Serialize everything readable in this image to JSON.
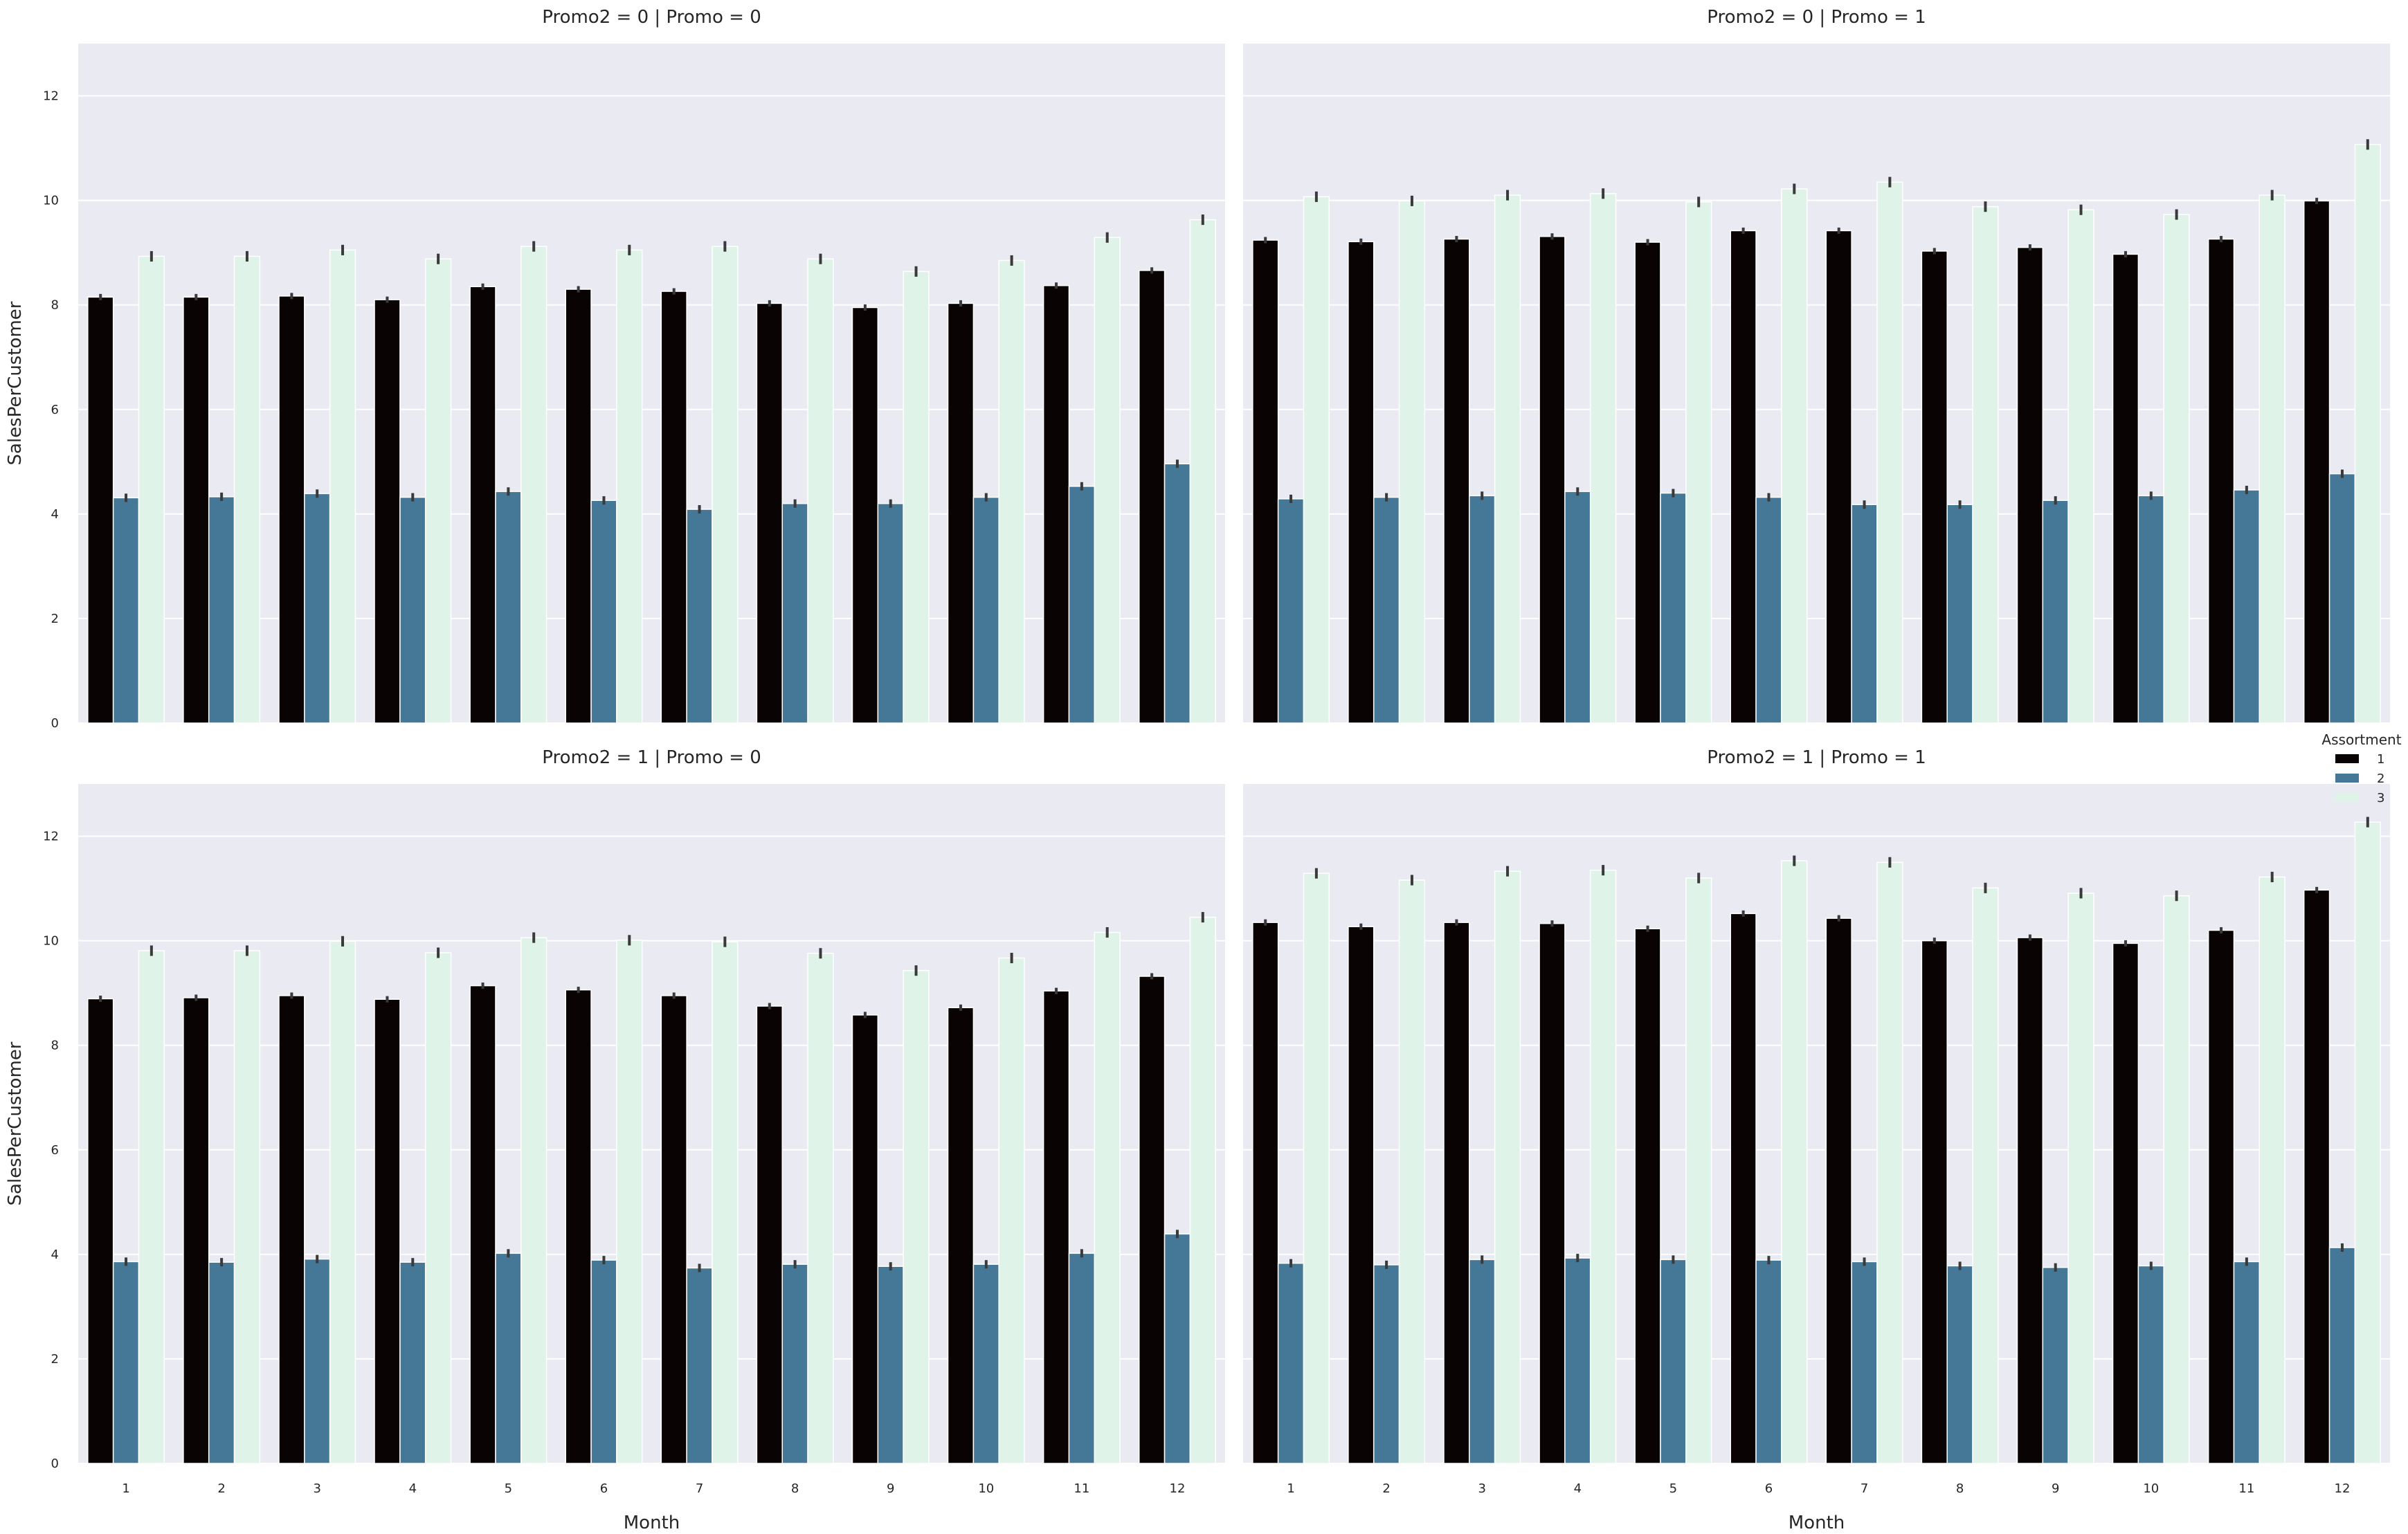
{
  "chart_data": [
    {
      "type": "bar",
      "title": "Promo2 = 0 | Promo = 0",
      "xlabel": "",
      "ylabel": "SalesPerCustomer",
      "ylim": [
        0,
        13
      ],
      "yticks": [
        0,
        2,
        4,
        6,
        8,
        10,
        12
      ],
      "categories": [
        "1",
        "2",
        "3",
        "4",
        "5",
        "6",
        "7",
        "8",
        "9",
        "10",
        "11",
        "12"
      ],
      "series": [
        {
          "name": "1",
          "values": [
            8.15,
            8.15,
            8.17,
            8.1,
            8.35,
            8.3,
            8.26,
            8.03,
            7.95,
            8.03,
            8.37,
            8.66
          ]
        },
        {
          "name": "2",
          "values": [
            4.31,
            4.33,
            4.39,
            4.32,
            4.43,
            4.26,
            4.09,
            4.2,
            4.2,
            4.32,
            4.53,
            4.96
          ]
        },
        {
          "name": "3",
          "values": [
            8.93,
            8.93,
            9.05,
            8.88,
            9.12,
            9.05,
            9.12,
            8.88,
            8.64,
            8.85,
            9.29,
            9.63
          ]
        }
      ]
    },
    {
      "type": "bar",
      "title": "Promo2 = 0 | Promo = 1",
      "xlabel": "",
      "ylabel": "",
      "ylim": [
        0,
        13
      ],
      "yticks": [
        0,
        2,
        4,
        6,
        8,
        10,
        12
      ],
      "categories": [
        "1",
        "2",
        "3",
        "4",
        "5",
        "6",
        "7",
        "8",
        "9",
        "10",
        "11",
        "12"
      ],
      "series": [
        {
          "name": "1",
          "values": [
            9.24,
            9.21,
            9.26,
            9.31,
            9.2,
            9.42,
            9.42,
            9.03,
            9.1,
            8.97,
            9.26,
            9.99
          ]
        },
        {
          "name": "2",
          "values": [
            4.29,
            4.32,
            4.35,
            4.43,
            4.4,
            4.32,
            4.18,
            4.18,
            4.26,
            4.35,
            4.46,
            4.77
          ]
        },
        {
          "name": "3",
          "values": [
            10.07,
            9.99,
            10.1,
            10.13,
            9.97,
            10.22,
            10.35,
            9.88,
            9.82,
            9.73,
            10.1,
            11.07
          ]
        }
      ]
    },
    {
      "type": "bar",
      "title": "Promo2 = 1 | Promo = 0",
      "xlabel": "Month",
      "ylabel": "SalesPerCustomer",
      "ylim": [
        0,
        13
      ],
      "yticks": [
        0,
        2,
        4,
        6,
        8,
        10,
        12
      ],
      "categories": [
        "1",
        "2",
        "3",
        "4",
        "5",
        "6",
        "7",
        "8",
        "9",
        "10",
        "11",
        "12"
      ],
      "series": [
        {
          "name": "1",
          "values": [
            8.89,
            8.91,
            8.95,
            8.88,
            9.14,
            9.06,
            8.95,
            8.75,
            8.58,
            8.72,
            9.04,
            9.32
          ]
        },
        {
          "name": "2",
          "values": [
            3.86,
            3.85,
            3.91,
            3.85,
            4.02,
            3.89,
            3.74,
            3.81,
            3.77,
            3.81,
            4.02,
            4.39
          ]
        },
        {
          "name": "3",
          "values": [
            9.81,
            9.81,
            9.99,
            9.77,
            10.06,
            10.01,
            9.98,
            9.76,
            9.43,
            9.67,
            10.16,
            10.45
          ]
        }
      ]
    },
    {
      "type": "bar",
      "title": "Promo2 = 1 | Promo = 1",
      "xlabel": "Month",
      "ylabel": "",
      "ylim": [
        0,
        13
      ],
      "yticks": [
        0,
        2,
        4,
        6,
        8,
        10,
        12
      ],
      "categories": [
        "1",
        "2",
        "3",
        "4",
        "5",
        "6",
        "7",
        "8",
        "9",
        "10",
        "11",
        "12"
      ],
      "series": [
        {
          "name": "1",
          "values": [
            10.35,
            10.27,
            10.35,
            10.33,
            10.23,
            10.52,
            10.43,
            10.0,
            10.06,
            9.95,
            10.2,
            10.97
          ]
        },
        {
          "name": "2",
          "values": [
            3.83,
            3.8,
            3.9,
            3.93,
            3.9,
            3.89,
            3.86,
            3.78,
            3.75,
            3.78,
            3.86,
            4.13
          ]
        },
        {
          "name": "3",
          "values": [
            11.29,
            11.16,
            11.33,
            11.35,
            11.2,
            11.53,
            11.5,
            11.01,
            10.91,
            10.86,
            11.22,
            12.27
          ]
        }
      ]
    }
  ],
  "legend": {
    "title": "Assortment",
    "position": "right",
    "items": [
      {
        "label": "1",
        "color": "#0a0303"
      },
      {
        "label": "2",
        "color": "#457896"
      },
      {
        "label": "3",
        "color": "#e0f3e8"
      }
    ]
  },
  "colors": {
    "panel_background": "#eaeaf2",
    "grid": "#ffffff",
    "error_bar": "#3a3a3a"
  }
}
